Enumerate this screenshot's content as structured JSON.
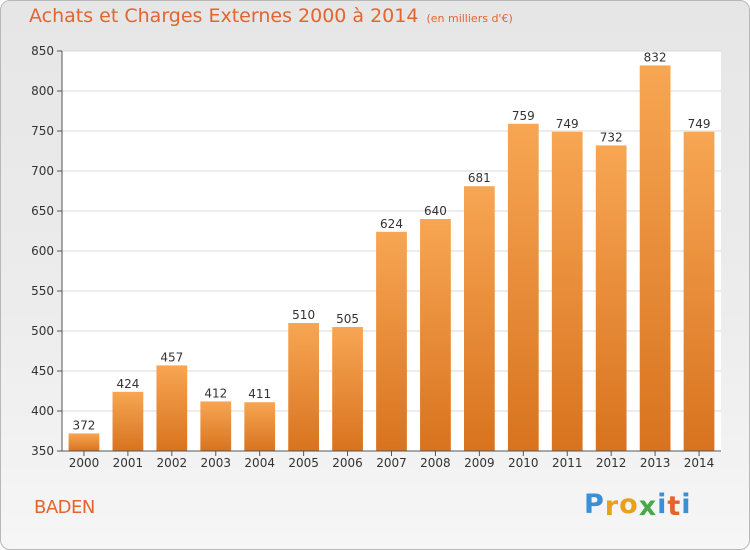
{
  "chart_data": {
    "type": "bar",
    "title": "Achats et Charges Externes 2000 à 2014",
    "subtitle": "(en milliers d'€)",
    "categories": [
      "2000",
      "2001",
      "2002",
      "2003",
      "2004",
      "2005",
      "2006",
      "2007",
      "2008",
      "2009",
      "2010",
      "2011",
      "2012",
      "2013",
      "2014"
    ],
    "values": [
      372,
      424,
      457,
      412,
      411,
      510,
      505,
      624,
      640,
      681,
      759,
      749,
      732,
      832,
      749
    ],
    "ylim": [
      350,
      850
    ],
    "yticks": [
      350,
      400,
      450,
      500,
      550,
      600,
      650,
      700,
      750,
      800,
      850
    ],
    "grid": true,
    "bar_color": "#f0a04b",
    "xlabel": "",
    "ylabel": ""
  },
  "location": "BADEN",
  "logo": {
    "text": "Proxiti",
    "letters": [
      {
        "ch": "P",
        "color": "#3b8fd6"
      },
      {
        "ch": "r",
        "color": "#e8a11c"
      },
      {
        "ch": "o",
        "color": "#e8a11c"
      },
      {
        "ch": "x",
        "color": "#4aa84b"
      },
      {
        "ch": "i",
        "color": "#3b8fd6"
      },
      {
        "ch": "t",
        "color": "#e2642f"
      },
      {
        "ch": "i",
        "color": "#3b8fd6"
      }
    ]
  }
}
